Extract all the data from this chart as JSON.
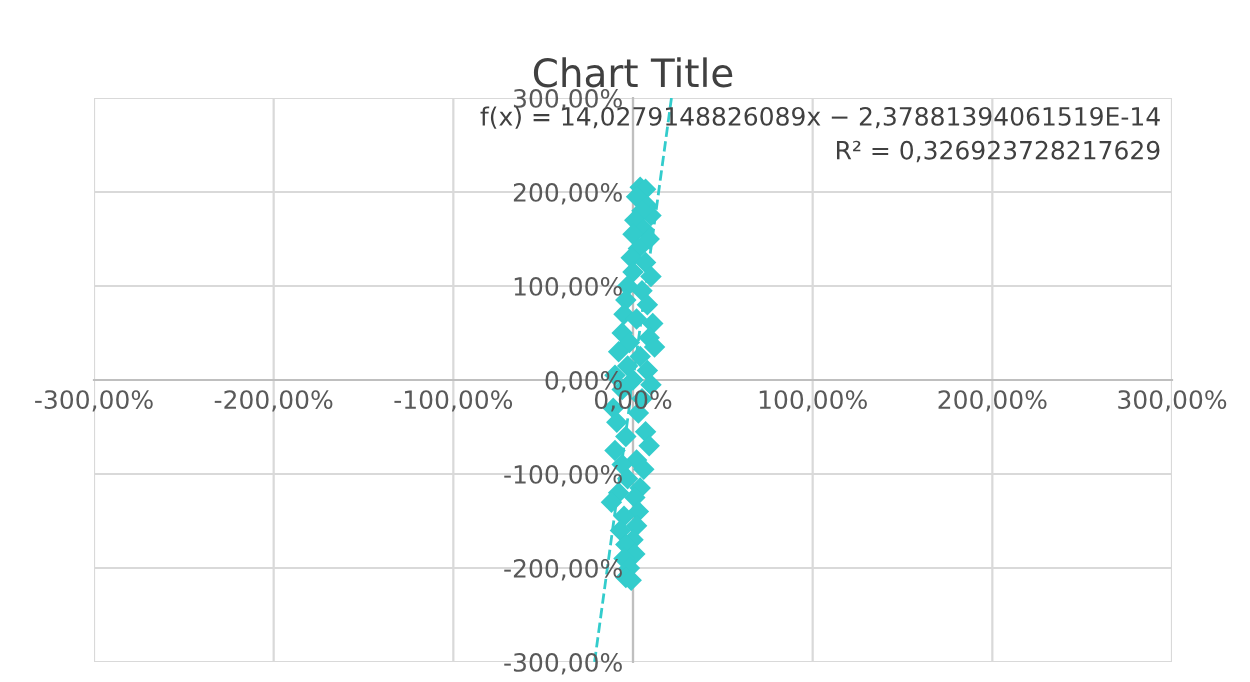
{
  "chart_data": {
    "type": "scatter",
    "title": "Chart Title",
    "marker": "diamond",
    "grid": true,
    "legend": false,
    "xlim": [
      -300,
      300
    ],
    "ylim": [
      -300,
      300
    ],
    "xticks": [
      {
        "value": -300,
        "label": "-300,00%"
      },
      {
        "value": -200,
        "label": "-200,00%"
      },
      {
        "value": -100,
        "label": "-100,00%"
      },
      {
        "value": 0,
        "label": "0,00%"
      },
      {
        "value": 100,
        "label": "100,00%"
      },
      {
        "value": 200,
        "label": "200,00%"
      },
      {
        "value": 300,
        "label": "300,00%"
      }
    ],
    "yticks": [
      {
        "value": -300,
        "label": "-300,00%"
      },
      {
        "value": -200,
        "label": "-200,00%"
      },
      {
        "value": -100,
        "label": "-100,00%"
      },
      {
        "value": 0,
        "label": "0,00%"
      },
      {
        "value": 100,
        "label": "100,00%"
      },
      {
        "value": 200,
        "label": "200,00%"
      },
      {
        "value": 300,
        "label": "300,00%"
      }
    ],
    "annotations": [
      "f(x) = 14,0279148826089x − 2,37881394061519E-14",
      "R² = 0,326923728217629"
    ],
    "series": [
      {
        "color": "#33cccc",
        "x": [
          4,
          7,
          2,
          8,
          10,
          5,
          1,
          6,
          0,
          9,
          3,
          -1,
          7,
          0,
          10,
          -3,
          5,
          -4,
          8,
          -5,
          11,
          2,
          -6,
          9,
          -2,
          12,
          -8,
          4,
          -3,
          8,
          -10,
          0,
          10,
          -6,
          5,
          -11,
          3,
          -9,
          7,
          -4,
          9,
          -10,
          2,
          -6,
          6,
          -3,
          4,
          -8,
          1,
          -12,
          3,
          -5,
          2,
          -7,
          0,
          -4,
          1,
          -5,
          -2,
          -4,
          -1
        ],
        "values": [
          205,
          203,
          195,
          185,
          175,
          180,
          170,
          160,
          155,
          150,
          140,
          130,
          125,
          115,
          110,
          100,
          95,
          85,
          80,
          70,
          60,
          65,
          50,
          45,
          40,
          35,
          30,
          25,
          15,
          10,
          5,
          0,
          -5,
          -10,
          -20,
          -30,
          -35,
          -45,
          -55,
          -60,
          -70,
          -75,
          -85,
          -90,
          -95,
          -105,
          -115,
          -120,
          -125,
          -130,
          -140,
          -145,
          -155,
          -160,
          -170,
          -175,
          -185,
          -190,
          -200,
          -210,
          -213
        ]
      },
      {
        "type": "line",
        "marker": "none",
        "color": "#33cccc",
        "line_style": "dashed",
        "x": [
          -21.4,
          21.4
        ],
        "values": [
          -300,
          300
        ]
      }
    ]
  }
}
